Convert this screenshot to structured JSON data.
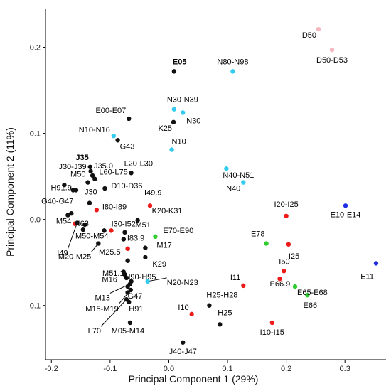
{
  "chart_data": {
    "type": "scatter",
    "xlabel": "Principal Component 1 (29%)",
    "ylabel": "Principal Component 2 (11%)",
    "xlim": [
      -0.21,
      0.37
    ],
    "ylim": [
      -0.163,
      0.245
    ],
    "x_ticks": [
      {
        "value": -0.2,
        "label": "-0.2"
      },
      {
        "value": -0.1,
        "label": "-0.1"
      },
      {
        "value": 0.0,
        "label": "0.0"
      },
      {
        "value": 0.1,
        "label": "0.1"
      },
      {
        "value": 0.2,
        "label": "0.2"
      },
      {
        "value": 0.3,
        "label": "0.3"
      }
    ],
    "y_ticks": [
      {
        "value": 0.2,
        "label": "0.2"
      },
      {
        "value": 0.1,
        "label": "0.1"
      },
      {
        "value": 0.0,
        "label": "0.0"
      },
      {
        "value": -0.1,
        "label": "-0.1"
      }
    ],
    "grid": false,
    "legend": "none",
    "colors": {
      "black": "#111111",
      "cyan": "#33ccee",
      "red": "#ee1a1a",
      "green": "#2ecc2e",
      "blue": "#1f2ee0",
      "pink": "#f5b8c0"
    },
    "points": [
      {
        "label": "D50",
        "x": 0.255,
        "y": 0.221,
        "color": "pink",
        "anchor": "end",
        "dx": -3,
        "dy": 12
      },
      {
        "label": "D50-D53",
        "x": 0.278,
        "y": 0.197,
        "color": "pink",
        "anchor": "middle",
        "dx": 0,
        "dy": 18
      },
      {
        "label": "E05",
        "x": 0.009,
        "y": 0.172,
        "color": "black",
        "anchor": "start",
        "dx": -2,
        "dy": -10,
        "bold": true
      },
      {
        "label": "N80-N98",
        "x": 0.109,
        "y": 0.172,
        "color": "cyan",
        "anchor": "middle",
        "dx": 0,
        "dy": -10
      },
      {
        "label": "N30-N39",
        "x": 0.009,
        "y": 0.128,
        "color": "cyan",
        "anchor": "start",
        "dx": -10,
        "dy": -10
      },
      {
        "label": "E00-E07",
        "x": -0.068,
        "y": 0.117,
        "color": "black",
        "anchor": "end",
        "dx": -4,
        "dy": -8
      },
      {
        "label": "N30",
        "x": 0.024,
        "y": 0.124,
        "color": "cyan",
        "anchor": "start",
        "dx": 5,
        "dy": 15
      },
      {
        "label": "K25",
        "x": 0.008,
        "y": 0.113,
        "color": "black",
        "anchor": "end",
        "dx": -2,
        "dy": 12
      },
      {
        "label": "N10-N16",
        "x": -0.094,
        "y": 0.097,
        "color": "cyan",
        "anchor": "end",
        "dx": -5,
        "dy": -5
      },
      {
        "label": "G43",
        "x": -0.087,
        "y": 0.092,
        "color": "black",
        "anchor": "start",
        "dx": 3,
        "dy": 12
      },
      {
        "label": "N10",
        "x": 0.005,
        "y": 0.081,
        "color": "cyan",
        "anchor": "start",
        "dx": 0,
        "dy": -8
      },
      {
        "label": "J35",
        "x": -0.134,
        "y": 0.061,
        "color": "black",
        "anchor": "end",
        "dx": -2,
        "dy": -10,
        "bold": true
      },
      {
        "label": "L20-L30",
        "x": -0.064,
        "y": 0.054,
        "color": "black",
        "anchor": "start",
        "dx": -10,
        "dy": -10
      },
      {
        "label": "N40-N51",
        "x": 0.098,
        "y": 0.059,
        "color": "cyan",
        "anchor": "start",
        "dx": -5,
        "dy": 13
      },
      {
        "label": "J30-J39",
        "x": -0.133,
        "y": 0.056,
        "color": "black",
        "anchor": "end",
        "dx": -6,
        "dy": -3
      },
      {
        "label": "J35.0",
        "x": -0.13,
        "y": 0.051,
        "color": "black",
        "anchor": "start",
        "dx": 2,
        "dy": -10
      },
      {
        "label": "M50",
        "x": -0.138,
        "y": 0.043,
        "color": "black",
        "anchor": "end",
        "dx": -3,
        "dy": -8
      },
      {
        "label": "L60-L75",
        "x": -0.126,
        "y": 0.047,
        "color": "black",
        "anchor": "start",
        "dx": 6,
        "dy": -6
      },
      {
        "label": "H91.9",
        "x": -0.163,
        "y": 0.034,
        "color": "black",
        "anchor": "end",
        "dx": -2,
        "dy": 0
      },
      {
        "label": "D10-D36",
        "x": -0.109,
        "y": 0.036,
        "color": "black",
        "anchor": "start",
        "dx": 9,
        "dy": 0
      },
      {
        "label": "N40",
        "x": 0.127,
        "y": 0.043,
        "color": "cyan",
        "anchor": "end",
        "dx": -4,
        "dy": 12
      },
      {
        "label": "J30",
        "x": -0.135,
        "y": 0.019,
        "color": "black",
        "anchor": "start",
        "dx": -7,
        "dy": -12
      },
      {
        "label": "I49.9",
        "x": -0.032,
        "y": 0.016,
        "color": "red",
        "anchor": "start",
        "dx": -8,
        "dy": -15
      },
      {
        "label": "E10-E14",
        "x": 0.301,
        "y": 0.016,
        "color": "blue",
        "anchor": "middle",
        "dx": 0,
        "dy": 16
      },
      {
        "label": "I20-I25",
        "x": 0.2,
        "y": 0.004,
        "color": "red",
        "anchor": "middle",
        "dx": 0,
        "dy": -13
      },
      {
        "label": "G40-G47",
        "x": -0.172,
        "y": 0.005,
        "color": "black",
        "anchor": "end",
        "dx": 8,
        "dy": -16
      },
      {
        "label": "I80-I89",
        "x": -0.123,
        "y": 0.011,
        "color": "red",
        "anchor": "start",
        "dx": 8,
        "dy": -1
      },
      {
        "label": "K20-K31",
        "x": -0.053,
        "y": -0.001,
        "color": "black",
        "anchor": "start",
        "dx": 20,
        "dy": -10
      },
      {
        "label": "M54",
        "x": -0.16,
        "y": -0.005,
        "color": "red",
        "anchor": "end",
        "dx": -5,
        "dy": 0
      },
      {
        "label": "I63",
        "x": -0.146,
        "y": -0.012,
        "color": "black",
        "anchor": "end",
        "dx": 8,
        "dy": -5
      },
      {
        "label": "I30-I52",
        "x": -0.11,
        "y": -0.013,
        "color": "black",
        "anchor": "start",
        "dx": 10,
        "dy": -6
      },
      {
        "label": "M51",
        "x": -0.075,
        "y": -0.015,
        "color": "black",
        "anchor": "start",
        "dx": 15,
        "dy": -7
      },
      {
        "label": "E70-E90",
        "x": -0.023,
        "y": -0.02,
        "color": "green",
        "anchor": "start",
        "dx": 11,
        "dy": -5
      },
      {
        "label": "M50-M54",
        "x": -0.098,
        "y": -0.013,
        "color": "red",
        "anchor": "end",
        "dx": -4,
        "dy": 11
      },
      {
        "label": "I83.9",
        "x": -0.077,
        "y": -0.023,
        "color": "black",
        "anchor": "start",
        "dx": 5,
        "dy": 2
      },
      {
        "label": "E78",
        "x": 0.166,
        "y": -0.028,
        "color": "green",
        "anchor": "end",
        "dx": -2,
        "dy": -10
      },
      {
        "label": "I25",
        "x": 0.204,
        "y": -0.029,
        "color": "red",
        "anchor": "start",
        "dx": 0,
        "dy": 20
      },
      {
        "label": "I49",
        "x": -0.156,
        "y": -0.004,
        "color": "black",
        "anchor": "end",
        "dx": -13,
        "dy": 46
      },
      {
        "label": "M17",
        "x": -0.04,
        "y": -0.033,
        "color": "black",
        "anchor": "start",
        "dx": 16,
        "dy": 0
      },
      {
        "label": "M25.5",
        "x": -0.07,
        "y": -0.034,
        "color": "red",
        "anchor": "end",
        "dx": -10,
        "dy": 8
      },
      {
        "label": "K29",
        "x": -0.04,
        "y": -0.044,
        "color": "black",
        "anchor": "start",
        "dx": 10,
        "dy": 13
      },
      {
        "label": "M20-M25",
        "x": -0.12,
        "y": -0.028,
        "color": "black",
        "anchor": "end",
        "dx": -10,
        "dy": 22
      },
      {
        "label": "M51.1",
        "x": -0.07,
        "y": -0.048,
        "color": "black",
        "anchor": "end",
        "dx": -5,
        "dy": 21
      },
      {
        "label": "E11",
        "x": 0.353,
        "y": -0.051,
        "color": "blue",
        "anchor": "end",
        "dx": -3,
        "dy": 22
      },
      {
        "label": "I50",
        "x": 0.196,
        "y": -0.06,
        "color": "red",
        "anchor": "start",
        "dx": -7,
        "dy": -10
      },
      {
        "label": "M16",
        "x": -0.077,
        "y": -0.061,
        "color": "black",
        "anchor": "end",
        "dx": -9,
        "dy": 14
      },
      {
        "label": "H90-H95",
        "x": -0.075,
        "y": -0.064,
        "color": "black",
        "anchor": "start",
        "dx": 0,
        "dy": 7
      },
      {
        "label": "E66.9",
        "x": 0.189,
        "y": -0.069,
        "color": "red",
        "anchor": "start",
        "dx": -14,
        "dy": 11
      },
      {
        "label": "N20-N23",
        "x": -0.036,
        "y": -0.072,
        "color": "cyan",
        "anchor": "start",
        "dx": 27,
        "dy": 5
      },
      {
        "label": "I11",
        "x": 0.127,
        "y": -0.077,
        "color": "red",
        "anchor": "end",
        "dx": -4,
        "dy": -8
      },
      {
        "label": "E65-E68",
        "x": 0.215,
        "y": -0.078,
        "color": "green",
        "anchor": "start",
        "dx": 3,
        "dy": 12
      },
      {
        "label": "M13",
        "x": -0.066,
        "y": -0.075,
        "color": "black",
        "anchor": "end",
        "dx": -28,
        "dy": 23
      },
      {
        "label": "G47",
        "x": -0.07,
        "y": -0.078,
        "color": "black",
        "anchor": "start",
        "dx": 0,
        "dy": 17
      },
      {
        "label": "M15-M19",
        "x": -0.065,
        "y": -0.082,
        "color": "black",
        "anchor": "end",
        "dx": -17,
        "dy": 30
      },
      {
        "label": "E66",
        "x": 0.236,
        "y": -0.088,
        "color": "green",
        "anchor": "middle",
        "dx": 4,
        "dy": 18
      },
      {
        "label": "H91",
        "x": -0.068,
        "y": -0.096,
        "color": "black",
        "anchor": "start",
        "dx": 0,
        "dy": 13
      },
      {
        "label": "H25-H28",
        "x": 0.069,
        "y": -0.1,
        "color": "black",
        "anchor": "start",
        "dx": -4,
        "dy": -11
      },
      {
        "label": "I10",
        "x": 0.039,
        "y": -0.11,
        "color": "red",
        "anchor": "end",
        "dx": -4,
        "dy": -6
      },
      {
        "label": "L70",
        "x": -0.072,
        "y": -0.093,
        "color": "black",
        "anchor": "end",
        "dx": -36,
        "dy": 48
      },
      {
        "label": "H25",
        "x": 0.087,
        "y": -0.122,
        "color": "black",
        "anchor": "start",
        "dx": -3,
        "dy": -13
      },
      {
        "label": "I10-I15",
        "x": 0.176,
        "y": -0.12,
        "color": "red",
        "anchor": "middle",
        "dx": 0,
        "dy": 17
      },
      {
        "label": "M05-M14",
        "x": -0.066,
        "y": -0.12,
        "color": "black",
        "anchor": "middle",
        "dx": -3,
        "dy": 15
      },
      {
        "label": "J40-J47",
        "x": 0.024,
        "y": -0.143,
        "color": "black",
        "anchor": "middle",
        "dx": 0,
        "dy": 16
      }
    ],
    "unlabeled_points": [
      {
        "x": -0.178,
        "y": 0.04,
        "color": "black"
      },
      {
        "x": -0.158,
        "y": 0.034,
        "color": "black"
      },
      {
        "x": -0.166,
        "y": 0.007,
        "color": "black"
      },
      {
        "x": -0.143,
        "y": -0.006,
        "color": "black"
      },
      {
        "x": -0.072,
        "y": -0.068,
        "color": "black"
      },
      {
        "x": -0.064,
        "y": -0.072,
        "color": "black"
      },
      {
        "x": -0.07,
        "y": -0.085,
        "color": "black"
      }
    ]
  }
}
